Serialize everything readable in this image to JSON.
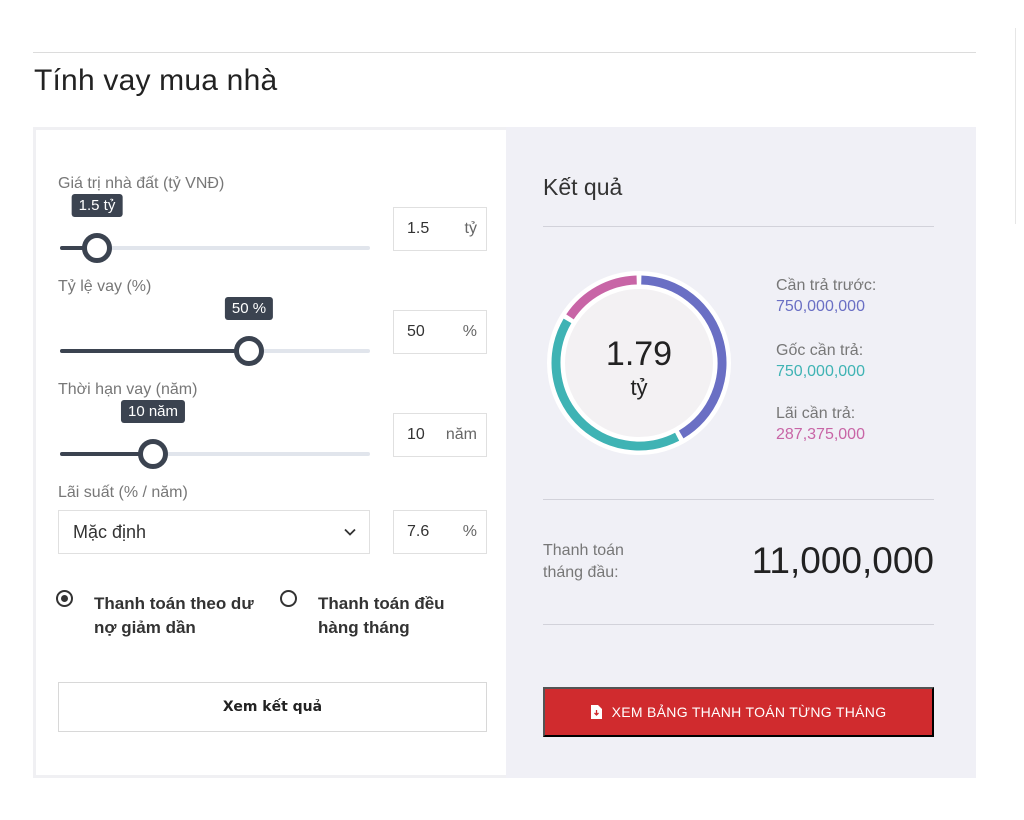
{
  "page": {
    "title": "Tính vay mua nhà"
  },
  "form": {
    "house_value": {
      "label": "Giá trị nhà đất (tỷ VNĐ)",
      "tooltip": "1.5 tỷ",
      "value": "1.5",
      "unit": "tỷ",
      "slider_fraction": 0.12
    },
    "loan_ratio": {
      "label": "Tỷ lệ vay (%)",
      "tooltip": "50 %",
      "value": "50",
      "unit": "%",
      "slider_fraction": 0.61
    },
    "loan_term": {
      "label": "Thời hạn vay (năm)",
      "tooltip": "10 năm",
      "value": "10",
      "unit": "năm",
      "slider_fraction": 0.3
    },
    "interest_rate": {
      "label": "Lãi suất (% / năm)",
      "select_value": "Mặc định",
      "value": "7.6",
      "unit": "%"
    },
    "payment_methods": [
      {
        "label": "Thanh toán theo dư nợ giảm dần",
        "selected": true
      },
      {
        "label": "Thanh toán đều hàng tháng",
        "selected": false
      }
    ],
    "submit_label": "Xem kết quả"
  },
  "result": {
    "title": "Kết quả",
    "total": "1.79",
    "total_unit": "tỷ",
    "down_payment": {
      "label": "Cần trả trước:",
      "value": "750,000,000",
      "color": "#6a6fc4"
    },
    "principal": {
      "label": "Gốc cần trả:",
      "value": "750,000,000",
      "color": "#3fb3b4"
    },
    "interest": {
      "label": "Lãi cần trả:",
      "value": "287,375,000",
      "color": "#c865a6"
    },
    "first_month_label": "Thanh toán tháng đầu:",
    "first_month_value": "11,000,000",
    "table_button_label": "XEM BẢNG THANH TOÁN TỪNG THÁNG"
  },
  "donut_segments": [
    {
      "name": "down_payment",
      "amount": 750000000,
      "color": "#6a6fc4"
    },
    {
      "name": "principal",
      "amount": 750000000,
      "color": "#3fb3b4"
    },
    {
      "name": "interest",
      "amount": 287375000,
      "color": "#c865a6"
    }
  ],
  "icons": {
    "chevron": "chevron-down-icon",
    "document": "file-download-icon"
  }
}
